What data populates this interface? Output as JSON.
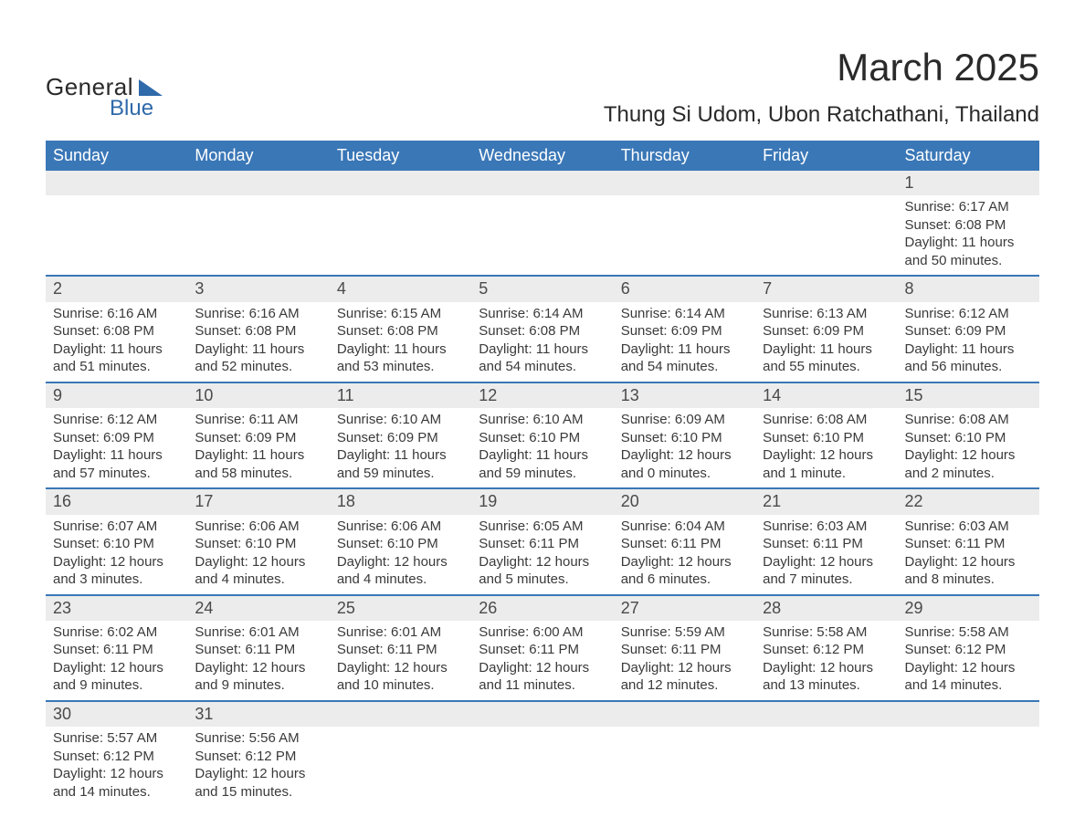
{
  "logo": {
    "text_general": "General",
    "text_blue": "Blue"
  },
  "title": "March 2025",
  "location": "Thung Si Udom, Ubon Ratchathani, Thailand",
  "header_bg": "#3a77b7",
  "header_fg": "#ffffff",
  "daynum_bg": "#ececec",
  "row_border": "#3a77b7",
  "text_color": "#3a3a3a",
  "weekdays": [
    "Sunday",
    "Monday",
    "Tuesday",
    "Wednesday",
    "Thursday",
    "Friday",
    "Saturday"
  ],
  "weeks": [
    [
      null,
      null,
      null,
      null,
      null,
      null,
      {
        "d": "1",
        "sr": "6:17 AM",
        "ss": "6:08 PM",
        "dl": "11 hours and 50 minutes."
      }
    ],
    [
      {
        "d": "2",
        "sr": "6:16 AM",
        "ss": "6:08 PM",
        "dl": "11 hours and 51 minutes."
      },
      {
        "d": "3",
        "sr": "6:16 AM",
        "ss": "6:08 PM",
        "dl": "11 hours and 52 minutes."
      },
      {
        "d": "4",
        "sr": "6:15 AM",
        "ss": "6:08 PM",
        "dl": "11 hours and 53 minutes."
      },
      {
        "d": "5",
        "sr": "6:14 AM",
        "ss": "6:08 PM",
        "dl": "11 hours and 54 minutes."
      },
      {
        "d": "6",
        "sr": "6:14 AM",
        "ss": "6:09 PM",
        "dl": "11 hours and 54 minutes."
      },
      {
        "d": "7",
        "sr": "6:13 AM",
        "ss": "6:09 PM",
        "dl": "11 hours and 55 minutes."
      },
      {
        "d": "8",
        "sr": "6:12 AM",
        "ss": "6:09 PM",
        "dl": "11 hours and 56 minutes."
      }
    ],
    [
      {
        "d": "9",
        "sr": "6:12 AM",
        "ss": "6:09 PM",
        "dl": "11 hours and 57 minutes."
      },
      {
        "d": "10",
        "sr": "6:11 AM",
        "ss": "6:09 PM",
        "dl": "11 hours and 58 minutes."
      },
      {
        "d": "11",
        "sr": "6:10 AM",
        "ss": "6:09 PM",
        "dl": "11 hours and 59 minutes."
      },
      {
        "d": "12",
        "sr": "6:10 AM",
        "ss": "6:10 PM",
        "dl": "11 hours and 59 minutes."
      },
      {
        "d": "13",
        "sr": "6:09 AM",
        "ss": "6:10 PM",
        "dl": "12 hours and 0 minutes."
      },
      {
        "d": "14",
        "sr": "6:08 AM",
        "ss": "6:10 PM",
        "dl": "12 hours and 1 minute."
      },
      {
        "d": "15",
        "sr": "6:08 AM",
        "ss": "6:10 PM",
        "dl": "12 hours and 2 minutes."
      }
    ],
    [
      {
        "d": "16",
        "sr": "6:07 AM",
        "ss": "6:10 PM",
        "dl": "12 hours and 3 minutes."
      },
      {
        "d": "17",
        "sr": "6:06 AM",
        "ss": "6:10 PM",
        "dl": "12 hours and 4 minutes."
      },
      {
        "d": "18",
        "sr": "6:06 AM",
        "ss": "6:10 PM",
        "dl": "12 hours and 4 minutes."
      },
      {
        "d": "19",
        "sr": "6:05 AM",
        "ss": "6:11 PM",
        "dl": "12 hours and 5 minutes."
      },
      {
        "d": "20",
        "sr": "6:04 AM",
        "ss": "6:11 PM",
        "dl": "12 hours and 6 minutes."
      },
      {
        "d": "21",
        "sr": "6:03 AM",
        "ss": "6:11 PM",
        "dl": "12 hours and 7 minutes."
      },
      {
        "d": "22",
        "sr": "6:03 AM",
        "ss": "6:11 PM",
        "dl": "12 hours and 8 minutes."
      }
    ],
    [
      {
        "d": "23",
        "sr": "6:02 AM",
        "ss": "6:11 PM",
        "dl": "12 hours and 9 minutes."
      },
      {
        "d": "24",
        "sr": "6:01 AM",
        "ss": "6:11 PM",
        "dl": "12 hours and 9 minutes."
      },
      {
        "d": "25",
        "sr": "6:01 AM",
        "ss": "6:11 PM",
        "dl": "12 hours and 10 minutes."
      },
      {
        "d": "26",
        "sr": "6:00 AM",
        "ss": "6:11 PM",
        "dl": "12 hours and 11 minutes."
      },
      {
        "d": "27",
        "sr": "5:59 AM",
        "ss": "6:11 PM",
        "dl": "12 hours and 12 minutes."
      },
      {
        "d": "28",
        "sr": "5:58 AM",
        "ss": "6:12 PM",
        "dl": "12 hours and 13 minutes."
      },
      {
        "d": "29",
        "sr": "5:58 AM",
        "ss": "6:12 PM",
        "dl": "12 hours and 14 minutes."
      }
    ],
    [
      {
        "d": "30",
        "sr": "5:57 AM",
        "ss": "6:12 PM",
        "dl": "12 hours and 14 minutes."
      },
      {
        "d": "31",
        "sr": "5:56 AM",
        "ss": "6:12 PM",
        "dl": "12 hours and 15 minutes."
      },
      null,
      null,
      null,
      null,
      null
    ]
  ],
  "labels": {
    "sunrise": "Sunrise: ",
    "sunset": "Sunset: ",
    "daylight": "Daylight: "
  }
}
